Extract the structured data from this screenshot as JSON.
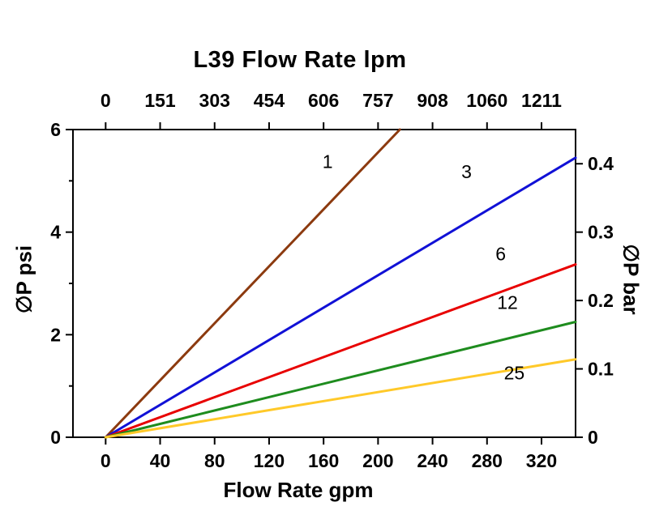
{
  "chart_data": {
    "type": "line",
    "title": "L39 Flow Rate lpm",
    "x_axis": {
      "label": "Flow Rate gpm",
      "ticks": [
        0,
        40,
        80,
        120,
        160,
        200,
        240,
        280,
        320
      ],
      "range": [
        -24,
        345
      ]
    },
    "x_axis_top": {
      "label": "L39 Flow Rate lpm",
      "ticks": [
        0,
        151,
        303,
        454,
        606,
        757,
        908,
        1060,
        1211
      ],
      "note": "lpm values aligned with gpm ticks"
    },
    "y_axis_left": {
      "label": "∅P psi",
      "ticks": [
        0,
        2,
        4,
        6
      ],
      "minor_ticks": [
        1,
        3,
        5
      ],
      "range": [
        0,
        6
      ]
    },
    "y_axis_right": {
      "label": "∅P bar",
      "ticks": [
        0,
        0.1,
        0.2,
        0.3,
        0.4
      ],
      "range": [
        0,
        0.45
      ]
    },
    "grid": false,
    "legend": "inline-labels",
    "series": [
      {
        "name": "1",
        "color": "#8C3A0F",
        "points": [
          [
            0,
            0
          ],
          [
            216,
            6.0
          ]
        ],
        "label_pos": {
          "x": 163,
          "y": 5.25
        }
      },
      {
        "name": "3",
        "color": "#1111D6",
        "points": [
          [
            0,
            0
          ],
          [
            345,
            5.45
          ]
        ],
        "label_pos": {
          "x": 265,
          "y": 5.05
        }
      },
      {
        "name": "6",
        "color": "#E80000",
        "points": [
          [
            0,
            0
          ],
          [
            345,
            3.37
          ]
        ],
        "label_pos": {
          "x": 290,
          "y": 3.45
        }
      },
      {
        "name": "12",
        "color": "#1E8C1E",
        "points": [
          [
            0,
            0
          ],
          [
            345,
            2.25
          ]
        ],
        "label_pos": {
          "x": 295,
          "y": 2.5
        }
      },
      {
        "name": "25",
        "color": "#FFC929",
        "points": [
          [
            0,
            0
          ],
          [
            345,
            1.52
          ]
        ],
        "label_pos": {
          "x": 300,
          "y": 1.13
        }
      }
    ]
  }
}
